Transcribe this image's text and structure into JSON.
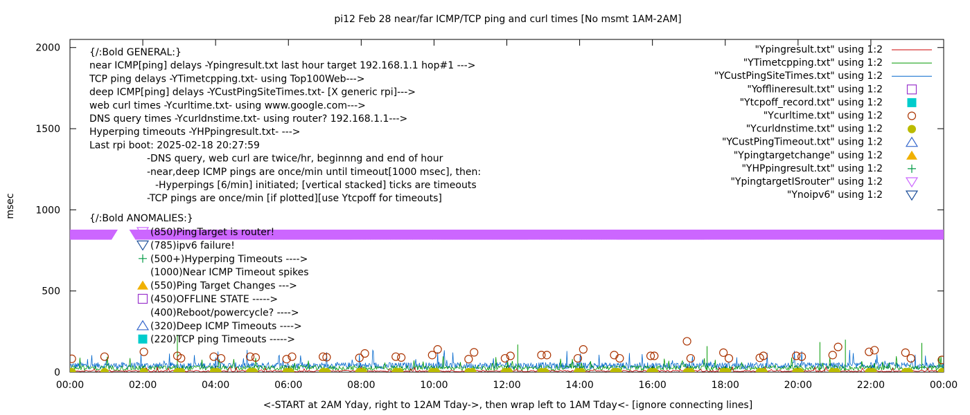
{
  "chart_data": {
    "type": "scatter",
    "title": "pi12 Feb 28  near/far ICMP/TCP ping and curl times [No msmt 1AM-2AM]",
    "xlabel": "<-START at 2AM Yday, right to 12AM Tday->, then wrap left to 1AM Tday<- [ignore connecting lines]",
    "ylabel": "msec",
    "xlim": [
      0,
      24
    ],
    "ylim": [
      0,
      2050
    ],
    "x_ticks": [
      "00:00",
      "02:00",
      "04:00",
      "06:00",
      "08:00",
      "10:00",
      "12:00",
      "14:00",
      "16:00",
      "18:00",
      "20:00",
      "22:00",
      "00:00"
    ],
    "y_ticks": [
      0,
      500,
      1000,
      1500,
      2000
    ],
    "grid": false,
    "legend_position": "top-right",
    "legend": [
      {
        "label": "\"Ypingresult.txt\" using 1:2",
        "color": "#cc0000",
        "marker": "line"
      },
      {
        "label": "\"YTimetcpping.txt\" using 1:2",
        "color": "#009900",
        "marker": "line"
      },
      {
        "label": "\"YCustPingSiteTimes.txt\" using 1:2",
        "color": "#0066cc",
        "marker": "line"
      },
      {
        "label": "\"Yofflineresult.txt\" using 1:2",
        "color": "#9933cc",
        "marker": "square-open"
      },
      {
        "label": "\"Ytcpoff_record.txt\" using 1:2",
        "color": "#00cccc",
        "marker": "square-filled"
      },
      {
        "label": "\"Ycurltime.txt\" using 1:2",
        "color": "#aa3300",
        "marker": "circle-open"
      },
      {
        "label": "\"Ycurldnstime.txt\" using 1:2",
        "color": "#bbbb00",
        "marker": "circle-filled"
      },
      {
        "label": "\"YCustPingTimeout.txt\" using 1:2",
        "color": "#3366cc",
        "marker": "triangle-up-open"
      },
      {
        "label": "\"Ypingtargetchange\" using 1:2",
        "color": "#f0b000",
        "marker": "triangle-up-filled"
      },
      {
        "label": "\"YHPpingresult.txt\" using 1:2",
        "color": "#009944",
        "marker": "plus"
      },
      {
        "label": "\"YpingtargetISrouter\" using 1:2",
        "color": "#cc66ff",
        "marker": "triangle-down-open"
      },
      {
        "label": "\"Ynoipv6\" using 1:2",
        "color": "#1a4d99",
        "marker": "triangle-down-open"
      }
    ],
    "notes": [
      "{/:Bold GENERAL:}",
      "near ICMP[ping] delays -Ypingresult.txt last hour target 192.168.1.1 hop#1 --->",
      "TCP ping delays -YTimetcpping.txt- using Top100Web--->",
      "deep ICMP[ping] delays -YCustPingSiteTimes.txt- [X generic rpi]--->",
      "web curl times -Ycurltime.txt- using www.google.com--->",
      "DNS query times -Ycurldnstime.txt- using router? 192.168.1.1--->",
      "Hyperping timeouts -YHPpingresult.txt- --->",
      "Last rpi boot: 2025-02-18 20:27:59",
      "-DNS query, web curl are twice/hr, beginnng and end of hour",
      "-near,deep ICMP pings are once/min until timeout[1000 msec], then:",
      "-Hyperpings [6/min] initiated; [vertical stacked] ticks are timeouts",
      "-TCP pings are once/min [if plotted][use Ytcpoff for timeouts]",
      "{/:Bold ANOMALIES:}"
    ],
    "anomalies": [
      {
        "marker": "triangle-down-open",
        "color": "#cc66ff",
        "text": "(850)PingTarget is router!"
      },
      {
        "marker": "triangle-down-open",
        "color": "#1a4d99",
        "text": "(785)ipv6 failure!"
      },
      {
        "marker": "plus",
        "color": "#009944",
        "text": "(500+)Hyperping Timeouts ---->"
      },
      {
        "marker": "none",
        "color": "#cc0000",
        "text": "(1000)Near ICMP Timeout spikes"
      },
      {
        "marker": "triangle-up-filled",
        "color": "#f0b000",
        "text": "(550)Ping Target Changes --->"
      },
      {
        "marker": "square-open",
        "color": "#9933cc",
        "text": "(450)OFFLINE STATE ----->"
      },
      {
        "marker": "none",
        "color": "#000000",
        "text": "(400)Reboot/powercycle? ---->"
      },
      {
        "marker": "triangle-up-open",
        "color": "#3366cc",
        "text": "(320)Deep ICMP Timeouts ---->"
      },
      {
        "marker": "square-filled",
        "color": "#00cccc",
        "text": "(220)TCP ping Timeouts ----->"
      }
    ],
    "series": [
      {
        "name": "\"YpingtargetISrouter\" using 1:2",
        "style": "triangle-down band",
        "value": 850,
        "x_ranges": [
          [
            0,
            1.15
          ],
          [
            1.8,
            24
          ]
        ]
      },
      {
        "name": "\"Ycurltime.txt\" using 1:2",
        "style": "circle-open",
        "x": [
          0.05,
          0.95,
          2.03,
          2.95,
          3.05,
          3.95,
          4.15,
          4.95,
          5.1,
          5.95,
          6.1,
          6.95,
          7.05,
          7.95,
          8.1,
          8.95,
          9.1,
          9.95,
          10.1,
          10.95,
          11.1,
          11.95,
          12.1,
          12.95,
          13.1,
          13.95,
          14.1,
          14.95,
          15.1,
          15.95,
          16.05,
          16.95,
          17.05,
          17.95,
          18.1,
          18.95,
          19.05,
          19.95,
          20.1,
          20.95,
          21.1,
          21.95,
          22.1,
          22.95,
          23.1,
          23.95
        ],
        "y": [
          82,
          95,
          125,
          100,
          85,
          95,
          85,
          95,
          90,
          80,
          95,
          95,
          92,
          88,
          115,
          95,
          90,
          105,
          140,
          80,
          122,
          85,
          100,
          105,
          105,
          85,
          140,
          105,
          85,
          100,
          100,
          190,
          85,
          120,
          85,
          88,
          100,
          100,
          95,
          105,
          155,
          125,
          135,
          120,
          85,
          75
        ]
      },
      {
        "name": "\"Ycurldnstime.txt\" using 1:2",
        "style": "circle-filled",
        "x": [
          0.05,
          0.95,
          2.03,
          2.95,
          3.05,
          3.95,
          4.05,
          4.95,
          5.05,
          5.95,
          6.05,
          6.95,
          7.05,
          7.95,
          8.05,
          8.95,
          9.05,
          9.95,
          10.05,
          10.95,
          11.05,
          11.95,
          12.05,
          12.95,
          13.05,
          13.95,
          14.05,
          14.95,
          15.05,
          15.95,
          16.05,
          16.95,
          17.05,
          17.95,
          18.05,
          18.95,
          19.05,
          19.95,
          20.05,
          20.95,
          21.05,
          21.95,
          22.05,
          22.95,
          23.05,
          23.95
        ],
        "y": [
          0,
          0,
          0,
          0,
          0,
          0,
          0,
          0,
          0,
          0,
          0,
          0,
          0,
          0,
          0,
          0,
          0,
          0,
          0,
          0,
          0,
          0,
          0,
          0,
          0,
          0,
          0,
          0,
          0,
          0,
          0,
          0,
          0,
          0,
          0,
          0,
          0,
          0,
          0,
          0,
          0,
          0,
          0,
          0,
          0,
          0
        ]
      },
      {
        "name": "\"YCustPingSiteTimes.txt\" using 1:2",
        "style": "line",
        "typical_range": [
          20,
          60
        ],
        "x_range": [
          0,
          24
        ]
      },
      {
        "name": "\"YTimetcpping.txt\" using 1:2",
        "style": "line",
        "typical_range": [
          10,
          40
        ],
        "x_range": [
          0,
          24
        ],
        "spikes": [
          {
            "x": 2.95,
            "y": 230
          },
          {
            "x": 12.3,
            "y": 170
          },
          {
            "x": 17.5,
            "y": 160
          },
          {
            "x": 20.6,
            "y": 185
          },
          {
            "x": 21.3,
            "y": 200
          },
          {
            "x": 23.4,
            "y": 180
          }
        ]
      },
      {
        "name": "\"Ypingresult.txt\" using 1:2",
        "style": "line",
        "typical_range": [
          2,
          12
        ],
        "x_range": [
          0,
          24
        ]
      }
    ]
  }
}
